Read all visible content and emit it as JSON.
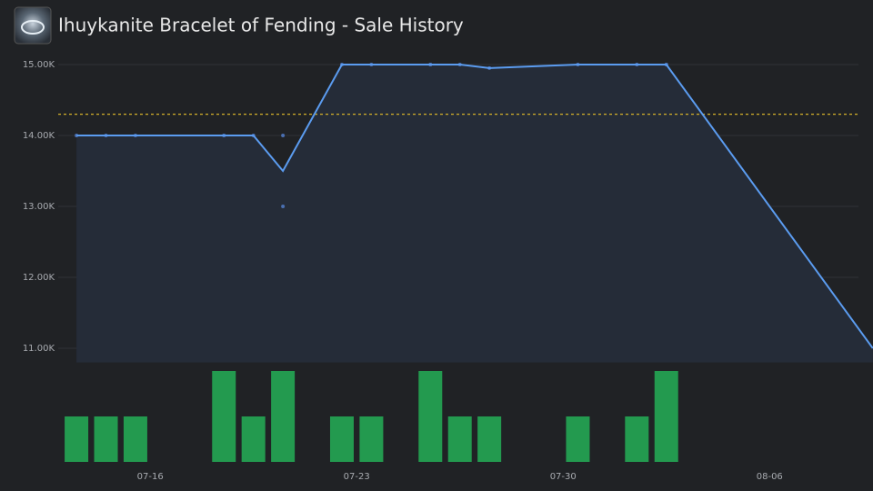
{
  "header": {
    "title": "Ihuykanite Bracelet of Fending - Sale History"
  },
  "chart_data": [
    {
      "type": "line",
      "x": [
        "07-13",
        "07-14",
        "07-15",
        "07-18",
        "07-19",
        "07-20",
        "07-22",
        "07-23",
        "07-25",
        "07-26",
        "07-27",
        "07-30",
        "08-01",
        "08-02",
        "08-09"
      ],
      "values": [
        14000,
        14000,
        14000,
        14000,
        14000,
        13500,
        15000,
        15000,
        15000,
        15000,
        14950,
        15000,
        15000,
        15000,
        11000
      ],
      "color": "#5b9cf0",
      "area_color": "#252c38",
      "sales": {
        "x": [
          "07-13",
          "07-14",
          "07-15",
          "07-18",
          "07-18",
          "07-19",
          "07-20",
          "07-20",
          "07-22",
          "07-23",
          "07-25",
          "07-25",
          "07-26",
          "07-27",
          "07-30",
          "08-01",
          "08-02",
          "08-02"
        ],
        "values": [
          14000,
          14000,
          14000,
          14000,
          14000,
          14000,
          13000,
          14000,
          15000,
          15000,
          15000,
          15000,
          15000,
          14950,
          15000,
          15000,
          15000,
          15000
        ],
        "color": "#4a6fb0"
      },
      "reference_line": {
        "value": 14300,
        "color": "#d4b02a"
      },
      "xlim": [
        "07-11",
        "08-10"
      ],
      "ylim": [
        10800,
        15300
      ],
      "yticks": [
        {
          "value": 11000,
          "label": "11.00K"
        },
        {
          "value": 12000,
          "label": "12.00K"
        },
        {
          "value": 13000,
          "label": "13.00K"
        },
        {
          "value": 14000,
          "label": "14.00K"
        },
        {
          "value": 15000,
          "label": "15.00K"
        }
      ],
      "grid": true
    },
    {
      "type": "bar",
      "x": [
        "07-13",
        "07-14",
        "07-15",
        "07-18",
        "07-19",
        "07-20",
        "07-22",
        "07-23",
        "07-25",
        "07-26",
        "07-27",
        "07-30",
        "08-01",
        "08-02"
      ],
      "values": [
        1,
        1,
        1,
        2,
        1,
        2,
        1,
        1,
        2,
        1,
        1,
        1,
        1,
        2
      ],
      "color": "#239a4f",
      "xlim": [
        "07-11",
        "08-10"
      ],
      "ylim": [
        0,
        2
      ],
      "xticks": [
        "07-16",
        "07-23",
        "07-30",
        "08-06"
      ]
    }
  ]
}
